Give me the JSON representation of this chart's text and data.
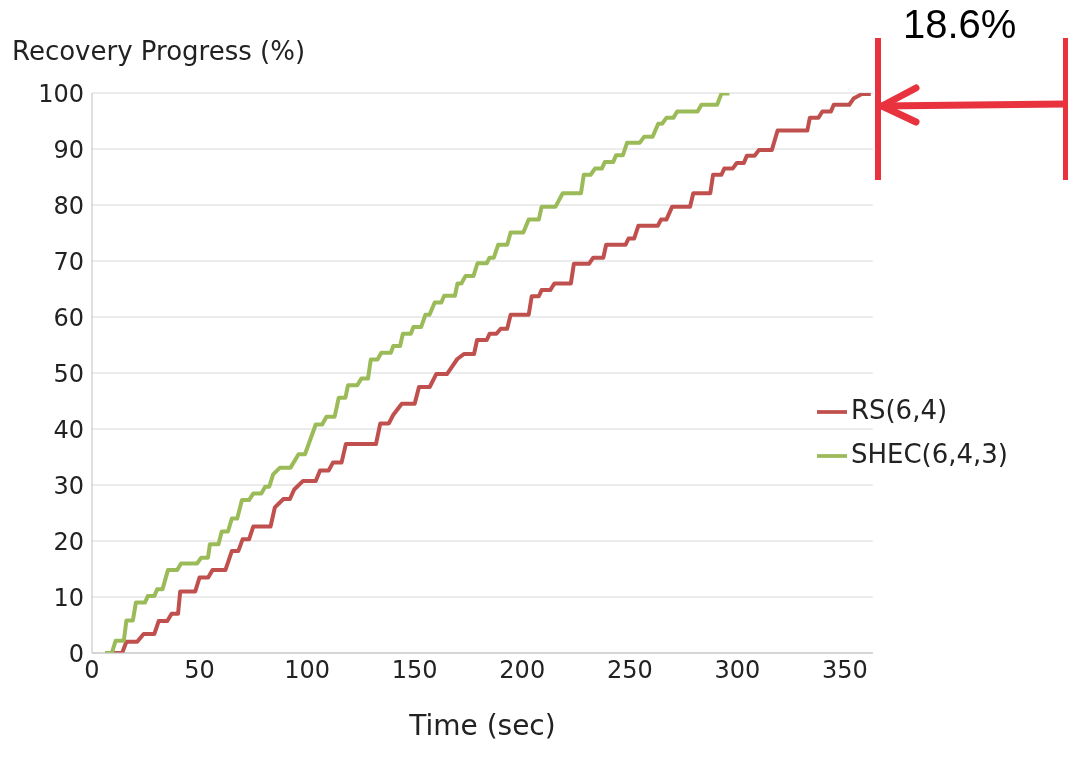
{
  "chart_data": {
    "type": "line",
    "xlabel": "Time (sec)",
    "ylabel": "Recovery Progress (%)",
    "annotations": [
      "18.6%"
    ],
    "xlim": [
      0,
      363
    ],
    "xticks": [
      0,
      50,
      100,
      150,
      200,
      250,
      300,
      350
    ],
    "ylim": [
      0,
      100
    ],
    "yticks": [
      0,
      10,
      20,
      30,
      40,
      50,
      60,
      70,
      80,
      90,
      100
    ],
    "grid": "y",
    "legend": "right",
    "marker": "none",
    "line_style": "solid",
    "series": [
      {
        "name": "RS(6,4)",
        "color": "#c0504d",
        "x": [
          7.8,
          14,
          16,
          21,
          24,
          29,
          31,
          35,
          37,
          40,
          41,
          48,
          50,
          54,
          56,
          62,
          65,
          68,
          70,
          73,
          75,
          83,
          85,
          89,
          92,
          94,
          98,
          104,
          106,
          110,
          112,
          116,
          118,
          132,
          134,
          138,
          140,
          144,
          150,
          152,
          157,
          160,
          165,
          169.8,
          173,
          177.6,
          179,
          183.5,
          184.8,
          188,
          190,
          193,
          194.6,
          203,
          204.4,
          207.7,
          209,
          213,
          215,
          222.6,
          224,
          231,
          233,
          237.7,
          239,
          248,
          249.4,
          252,
          254,
          263,
          264.5,
          267,
          269.7,
          278,
          279.5,
          287.4,
          288.7,
          292.6,
          293.9,
          297.8,
          299.7,
          303,
          304.4,
          308,
          310,
          316,
          318.7,
          332.5,
          333.7,
          337.7,
          339.5,
          343.5,
          344.8,
          352,
          354,
          357.8,
          362
        ],
        "values": [
          0,
          0,
          2,
          2,
          3.4,
          3.4,
          5.7,
          5.7,
          7,
          7,
          11,
          11,
          13.5,
          13.5,
          14.8,
          14.8,
          18.2,
          18.2,
          20.3,
          20.3,
          22.6,
          22.6,
          26,
          27.5,
          27.5,
          29.2,
          30.7,
          30.7,
          32.6,
          32.6,
          34,
          34,
          37.3,
          37.3,
          41,
          41,
          42.5,
          44.5,
          44.5,
          47.5,
          47.5,
          49.8,
          49.8,
          52.5,
          53.4,
          53.4,
          55.9,
          55.9,
          57,
          57,
          57.9,
          57.9,
          60.4,
          60.4,
          63.7,
          63.7,
          64.8,
          64.8,
          66,
          66,
          69.5,
          69.5,
          70.6,
          70.6,
          72.9,
          72.9,
          74,
          74,
          76.3,
          76.3,
          77.4,
          77.4,
          79.7,
          79.7,
          82.1,
          82.1,
          85.4,
          85.4,
          86.5,
          86.5,
          87.5,
          87.5,
          88.8,
          88.8,
          89.8,
          89.8,
          93.3,
          93.3,
          95.6,
          95.6,
          96.7,
          96.7,
          97.9,
          97.9,
          99,
          99.8,
          99.8
        ]
      },
      {
        "name": "SHEC(6,4,3)",
        "color": "#9bbb59",
        "x": [
          6,
          9.2,
          11,
          14.8,
          16,
          19,
          20.4,
          24.6,
          26,
          29,
          30.3,
          32.8,
          35.3,
          39.6,
          41.4,
          48.9,
          50.7,
          53.9,
          54.8,
          58.8,
          60.3,
          63.2,
          65,
          67.5,
          69.7,
          73,
          75,
          78.7,
          80.5,
          82.4,
          84.2,
          87.4,
          92.3,
          96,
          99,
          104,
          107,
          109,
          112.8,
          114.7,
          117.8,
          119,
          123.3,
          125.2,
          128.3,
          129.6,
          132.7,
          134.5,
          138.9,
          140,
          143.2,
          144.5,
          148.2,
          149.4,
          153,
          155,
          156.9,
          159.3,
          162.4,
          163.7,
          168.7,
          169.9,
          171.7,
          173.6,
          177.3,
          179.2,
          183.5,
          184.8,
          186.8,
          188.8,
          193,
          194.6,
          200.5,
          203,
          207.7,
          209,
          215.5,
          218.8,
          227.3,
          228.6,
          231.8,
          233.8,
          237,
          238.4,
          242.3,
          243.6,
          246.8,
          248.7,
          254.6,
          256.7,
          260.6,
          263.2,
          265,
          267.1,
          270.3,
          272,
          281.5,
          283.3,
          290.6,
          292.6,
          296.3
        ],
        "values": [
          0,
          0,
          2.2,
          2.2,
          5.8,
          5.8,
          9,
          9,
          10.2,
          10.2,
          11.4,
          11.4,
          14.8,
          14.8,
          16,
          16,
          17,
          17,
          19.4,
          19.4,
          21.7,
          21.7,
          24,
          24,
          27.3,
          27.3,
          28.5,
          28.5,
          29.7,
          29.7,
          31.9,
          33.1,
          33.1,
          35.5,
          35.5,
          40.8,
          40.8,
          42.2,
          42.2,
          45.6,
          45.6,
          47.8,
          47.8,
          49,
          49,
          52.4,
          52.4,
          53.6,
          53.6,
          54.8,
          54.8,
          57,
          57,
          58.2,
          58.2,
          60.4,
          60.4,
          62.6,
          62.6,
          63.8,
          63.8,
          66,
          66,
          67.3,
          67.3,
          69.6,
          69.6,
          70.6,
          70.6,
          72.9,
          72.9,
          75.1,
          75.1,
          77.4,
          77.4,
          79.7,
          79.7,
          82.1,
          82.1,
          85.4,
          85.4,
          86.5,
          86.5,
          87.7,
          87.7,
          88.9,
          88.9,
          91.1,
          91.1,
          92.2,
          92.2,
          94.5,
          94.5,
          95.6,
          95.6,
          96.7,
          96.7,
          97.9,
          97.9,
          99.9,
          99.9
        ]
      }
    ]
  }
}
